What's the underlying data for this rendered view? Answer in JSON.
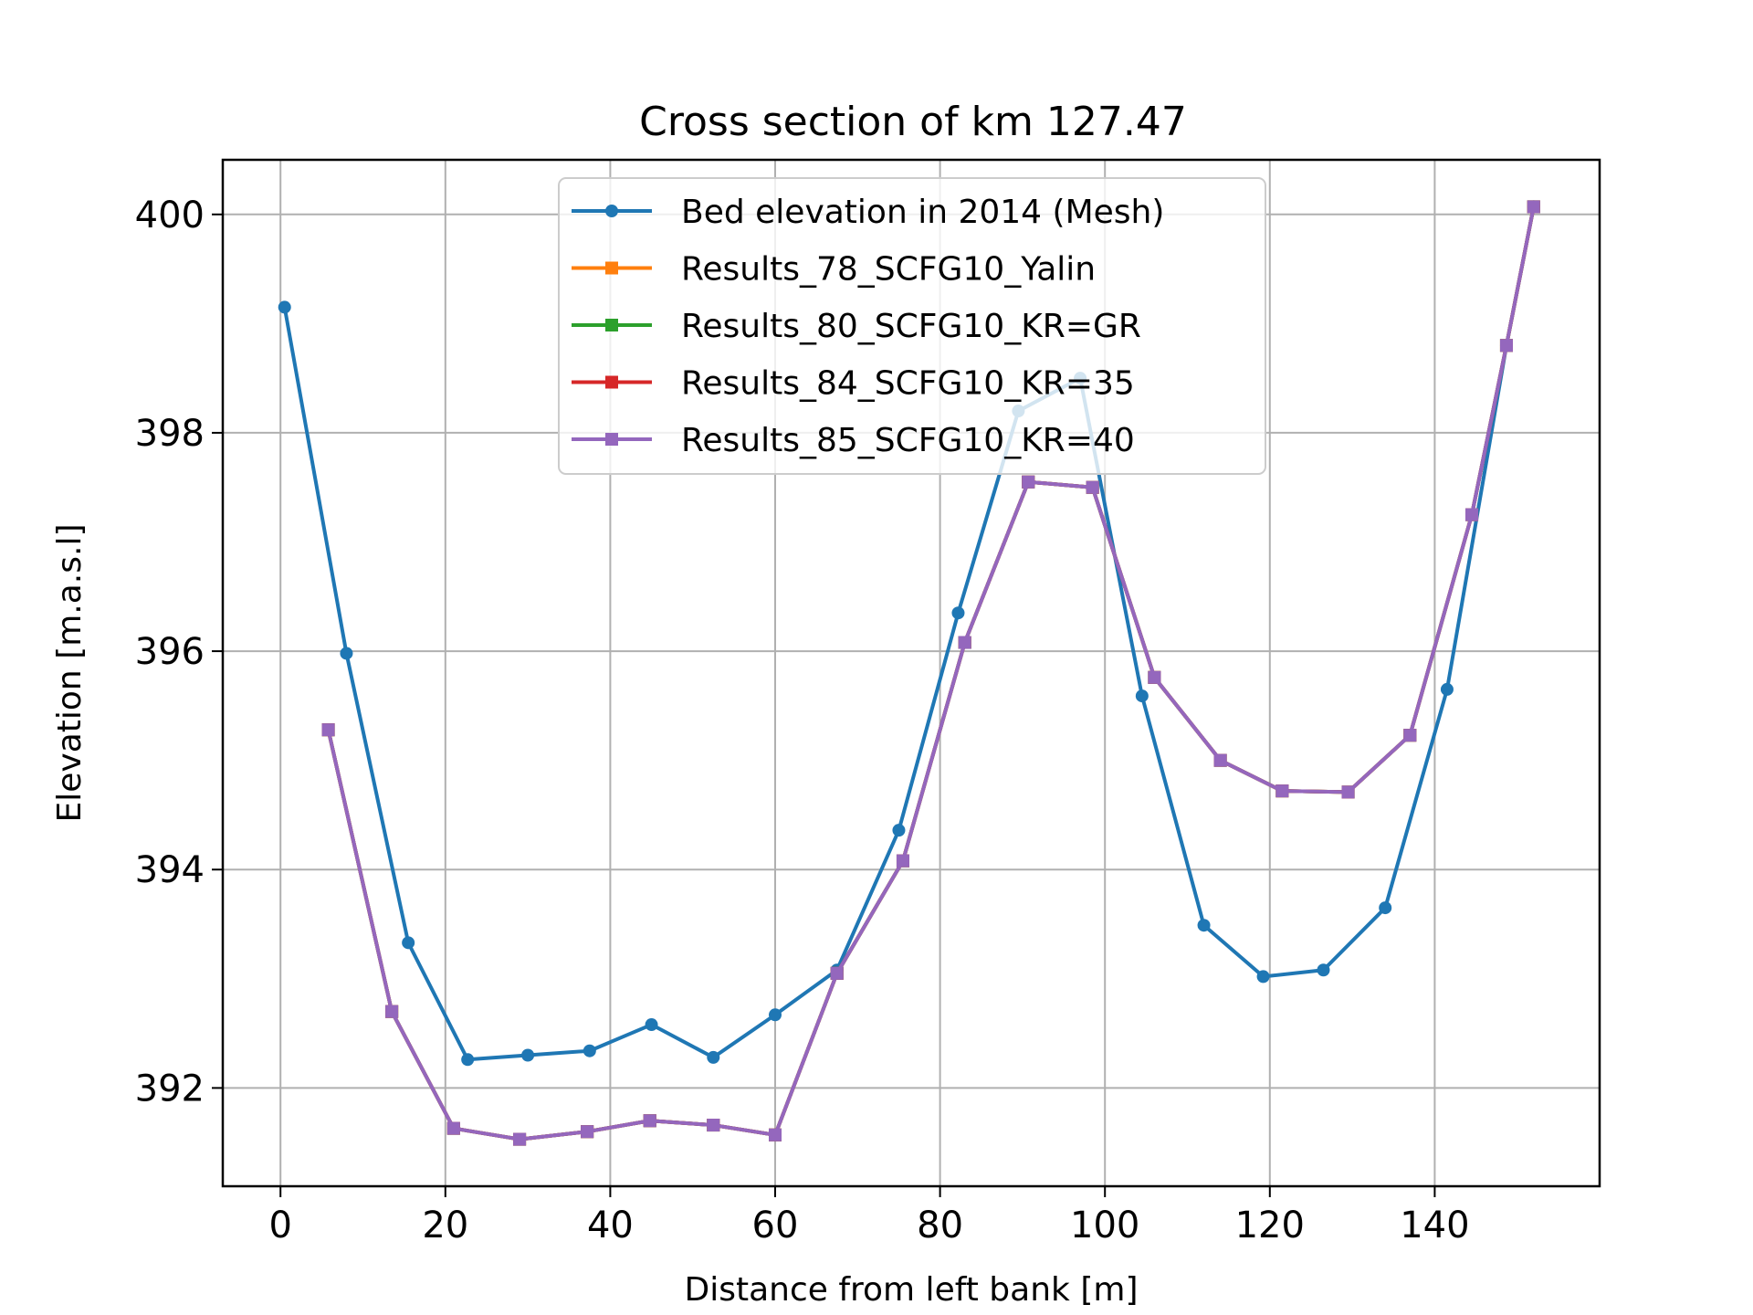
{
  "chart_data": {
    "type": "line",
    "title": "Cross section of km 127.47",
    "xlabel": "Distance from left bank [m]",
    "ylabel": "Elevation [m.a.s.l]",
    "xlim": [
      -7,
      160
    ],
    "ylim": [
      391.1,
      400.5
    ],
    "xticks": [
      0,
      20,
      40,
      60,
      80,
      100,
      120,
      140
    ],
    "yticks": [
      392,
      394,
      396,
      398,
      400
    ],
    "grid": true,
    "legend_position": "upper-center",
    "series": [
      {
        "name": "Bed elevation in 2014 (Mesh)",
        "color": "#1f77b4",
        "marker": "circle",
        "x": [
          0.5,
          8,
          15.5,
          22.7,
          30,
          37.5,
          45,
          52.5,
          60,
          67.5,
          75,
          82.2,
          89.5,
          97,
          104.5,
          112,
          119.2,
          126.5,
          134,
          141.5,
          148.7,
          152
        ],
        "y": [
          399.15,
          395.98,
          393.33,
          392.26,
          392.3,
          392.34,
          392.58,
          392.28,
          392.67,
          393.08,
          394.36,
          396.35,
          398.2,
          398.5,
          395.59,
          393.49,
          393.02,
          393.08,
          393.65,
          395.65,
          398.8,
          400.07
        ]
      },
      {
        "name": "Results_78_SCFG10_Yalin",
        "color": "#ff7f0e",
        "marker": "square",
        "x": [
          5.8,
          13.5,
          21,
          29,
          37.2,
          44.8,
          52.5,
          60,
          67.5,
          75.5,
          83,
          90.7,
          98.5,
          106,
          114,
          121.5,
          129.5,
          137,
          144.5,
          148.7,
          152
        ],
        "y": [
          395.28,
          392.7,
          391.63,
          391.53,
          391.6,
          391.7,
          391.66,
          391.57,
          393.05,
          394.08,
          396.08,
          397.55,
          397.5,
          395.76,
          395.0,
          394.72,
          394.71,
          395.23,
          397.25,
          398.8,
          400.07
        ]
      },
      {
        "name": "Results_80_SCFG10_KR=GR",
        "color": "#2ca02c",
        "marker": "square",
        "x": [
          5.8,
          13.5,
          21,
          29,
          37.2,
          44.8,
          52.5,
          60,
          67.5,
          75.5,
          83,
          90.7,
          98.5,
          106,
          114,
          121.5,
          129.5,
          137,
          144.5,
          148.7,
          152
        ],
        "y": [
          395.28,
          392.7,
          391.63,
          391.53,
          391.6,
          391.7,
          391.66,
          391.57,
          393.05,
          394.08,
          396.08,
          397.55,
          397.5,
          395.76,
          395.0,
          394.72,
          394.71,
          395.23,
          397.25,
          398.8,
          400.07
        ]
      },
      {
        "name": "Results_84_SCFG10_KR=35",
        "color": "#d62728",
        "marker": "square",
        "x": [
          5.8,
          13.5,
          21,
          29,
          37.2,
          44.8,
          52.5,
          60,
          67.5,
          75.5,
          83,
          90.7,
          98.5,
          106,
          114,
          121.5,
          129.5,
          137,
          144.5,
          148.7,
          152
        ],
        "y": [
          395.28,
          392.7,
          391.63,
          391.53,
          391.6,
          391.7,
          391.66,
          391.57,
          393.05,
          394.08,
          396.08,
          397.55,
          397.5,
          395.76,
          395.0,
          394.72,
          394.71,
          395.23,
          397.25,
          398.8,
          400.07
        ]
      },
      {
        "name": "Results_85_SCFG10_KR=40",
        "color": "#9467bd",
        "marker": "square",
        "x": [
          5.8,
          13.5,
          21,
          29,
          37.2,
          44.8,
          52.5,
          60,
          67.5,
          75.5,
          83,
          90.7,
          98.5,
          106,
          114,
          121.5,
          129.5,
          137,
          144.5,
          148.7,
          152
        ],
        "y": [
          395.28,
          392.7,
          391.63,
          391.53,
          391.6,
          391.7,
          391.66,
          391.57,
          393.05,
          394.08,
          396.08,
          397.55,
          397.5,
          395.76,
          395.0,
          394.72,
          394.71,
          395.23,
          397.25,
          398.8,
          400.07
        ]
      }
    ]
  }
}
